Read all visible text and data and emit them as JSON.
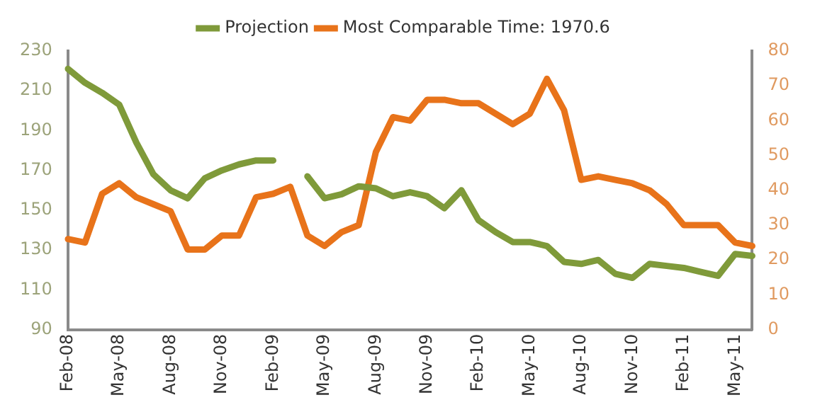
{
  "chart_data": {
    "type": "line",
    "categories": [
      "Feb-08",
      null,
      null,
      "May-08",
      null,
      null,
      "Aug-08",
      null,
      null,
      "Nov-08",
      null,
      null,
      "Feb-09",
      null,
      null,
      "May-09",
      null,
      null,
      "Aug-09",
      null,
      null,
      "Nov-09",
      null,
      null,
      "Feb-10",
      null,
      null,
      "May-10",
      null,
      null,
      "Aug-10",
      null,
      null,
      "Nov-10",
      null,
      null,
      "Feb-11",
      null,
      null,
      "May-11",
      null
    ],
    "series": [
      {
        "name": "Projection",
        "color": "#7f9a3a",
        "values": [
          221,
          214,
          209,
          203,
          184,
          168,
          160,
          156,
          166,
          170,
          173,
          175,
          175,
          null,
          167,
          156,
          158,
          162,
          161,
          157,
          159,
          157,
          151,
          160,
          145,
          139,
          134,
          134,
          132,
          124,
          123,
          125,
          118,
          116,
          123,
          122,
          121,
          119,
          117,
          128,
          127
        ]
      },
      {
        "name": "Most Comparable Time: 1970.6",
        "color": "#e8731a",
        "axis": "y2",
        "values": [
          26,
          25,
          39,
          42,
          38,
          36,
          34,
          23,
          23,
          27,
          27,
          38,
          39,
          41,
          27,
          24,
          28,
          30,
          51,
          61,
          60,
          66,
          66,
          65,
          65,
          62,
          59,
          62,
          72,
          63,
          43,
          44,
          43,
          42,
          40,
          36,
          30,
          30,
          30,
          25,
          24
        ]
      }
    ],
    "ylim": [
      90,
      230
    ],
    "yticks": [
      90,
      110,
      130,
      150,
      170,
      190,
      210,
      230
    ],
    "y2lim": [
      0,
      80
    ],
    "y2ticks": [
      0,
      10,
      20,
      30,
      40,
      50,
      60,
      70,
      80
    ],
    "legend": "top",
    "grid": false,
    "marker": "none",
    "line_style": "solid"
  }
}
